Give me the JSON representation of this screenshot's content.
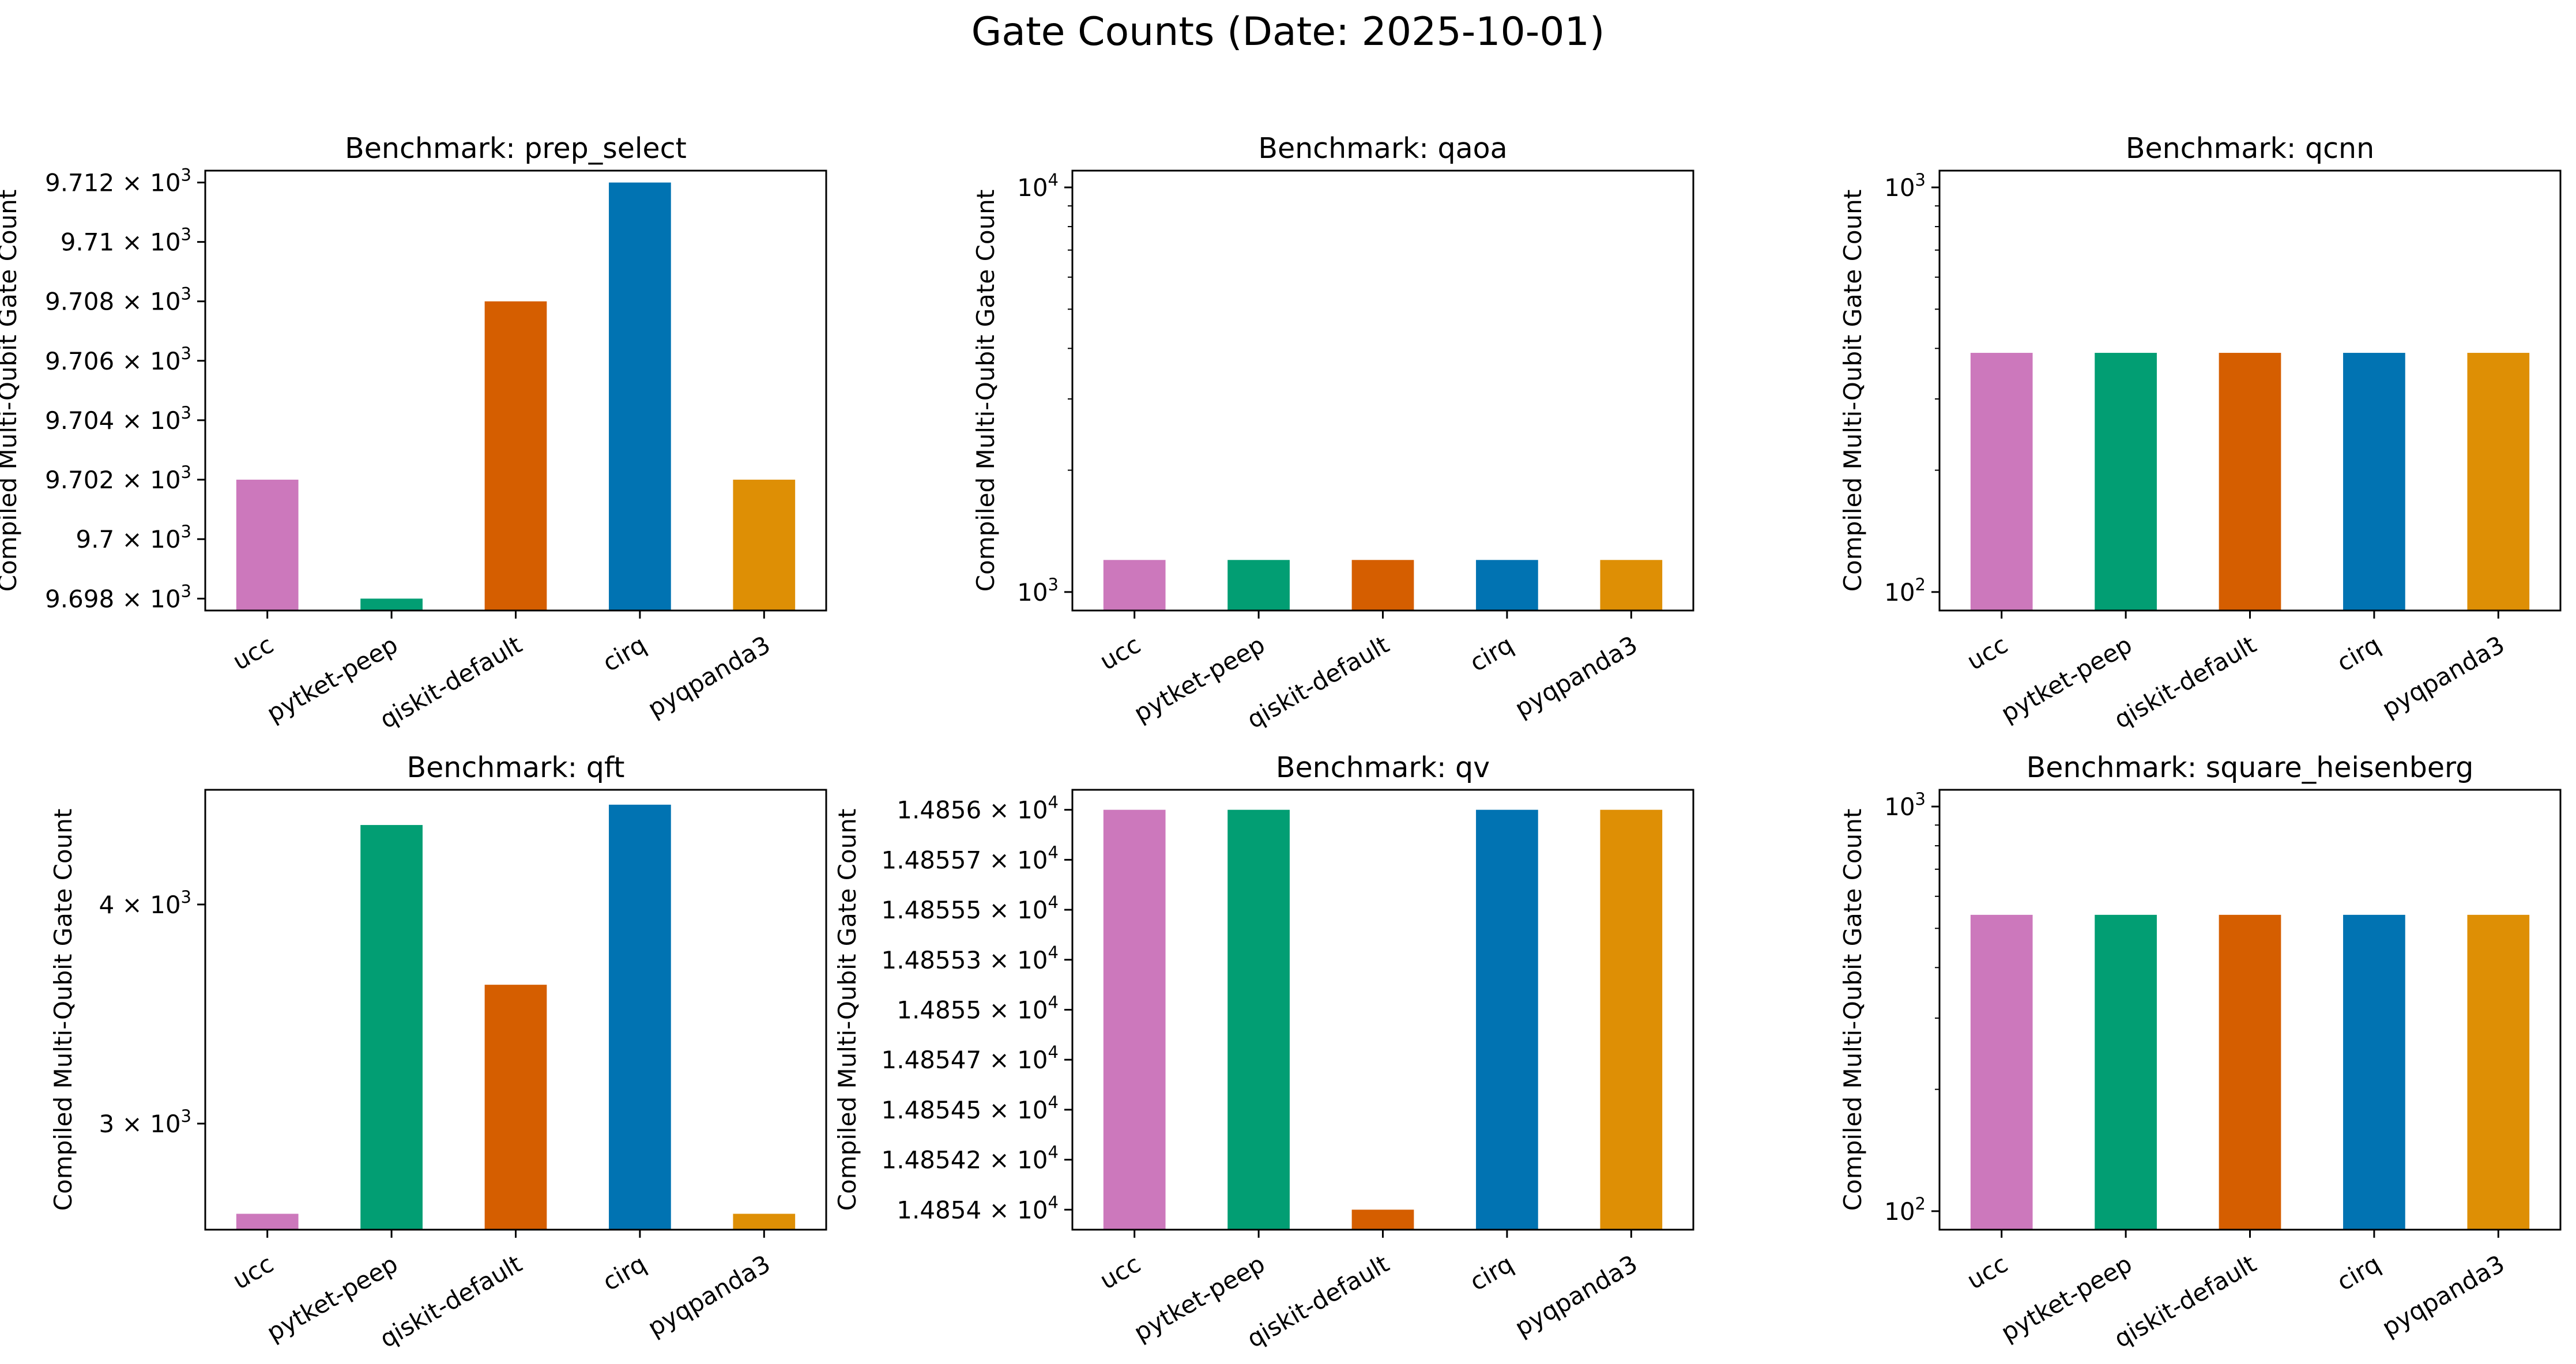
{
  "figure": {
    "title": "Gate Counts (Date: 2025-10-01)"
  },
  "chart_data": [
    {
      "type": "bar",
      "title": "Benchmark: prep_select",
      "xlabel": "",
      "ylabel": "Compiled Multi-Qubit Gate Count",
      "categories": [
        "ucc",
        "pytket-peep",
        "qiskit-default",
        "cirq",
        "pyqpanda3"
      ],
      "values": [
        9702,
        9698,
        9708,
        9712,
        9702
      ],
      "colors": [
        "#cc78bc",
        "#029e73",
        "#d55e00",
        "#0173b2",
        "#de8f05"
      ],
      "yscale": "log",
      "ylim": [
        9697.6,
        9712.4
      ],
      "yticks": [
        {
          "value": 9698,
          "mantissa": "9.698",
          "base": "10",
          "exp": "3"
        },
        {
          "value": 9700,
          "mantissa": "9.7",
          "base": "10",
          "exp": "3"
        },
        {
          "value": 9702,
          "mantissa": "9.702",
          "base": "10",
          "exp": "3"
        },
        {
          "value": 9704,
          "mantissa": "9.704",
          "base": "10",
          "exp": "3"
        },
        {
          "value": 9706,
          "mantissa": "9.706",
          "base": "10",
          "exp": "3"
        },
        {
          "value": 9708,
          "mantissa": "9.708",
          "base": "10",
          "exp": "3"
        },
        {
          "value": 9710,
          "mantissa": "9.71",
          "base": "10",
          "exp": "3"
        },
        {
          "value": 9712,
          "mantissa": "9.712",
          "base": "10",
          "exp": "3"
        }
      ],
      "minor_yticks": []
    },
    {
      "type": "bar",
      "title": "Benchmark: qaoa",
      "xlabel": "",
      "ylabel": "Compiled Multi-Qubit Gate Count",
      "categories": [
        "ucc",
        "pytket-peep",
        "qiskit-default",
        "cirq",
        "pyqpanda3"
      ],
      "values": [
        1200,
        1200,
        1200,
        1200,
        1200
      ],
      "colors": [
        "#cc78bc",
        "#029e73",
        "#d55e00",
        "#0173b2",
        "#de8f05"
      ],
      "yscale": "log",
      "ylim": [
        900,
        11000
      ],
      "yticks": [
        {
          "value": 1000,
          "mantissa": "",
          "base": "10",
          "exp": "3"
        },
        {
          "value": 10000,
          "mantissa": "",
          "base": "10",
          "exp": "4"
        }
      ],
      "minor_yticks": [
        2000,
        3000,
        4000,
        5000,
        6000,
        7000,
        8000,
        9000
      ]
    },
    {
      "type": "bar",
      "title": "Benchmark: qcnn",
      "xlabel": "",
      "ylabel": "Compiled Multi-Qubit Gate Count",
      "categories": [
        "ucc",
        "pytket-peep",
        "qiskit-default",
        "cirq",
        "pyqpanda3"
      ],
      "values": [
        390,
        390,
        390,
        390,
        390
      ],
      "colors": [
        "#cc78bc",
        "#029e73",
        "#d55e00",
        "#0173b2",
        "#de8f05"
      ],
      "yscale": "log",
      "ylim": [
        90,
        1100
      ],
      "yticks": [
        {
          "value": 100,
          "mantissa": "",
          "base": "10",
          "exp": "2"
        },
        {
          "value": 1000,
          "mantissa": "",
          "base": "10",
          "exp": "3"
        }
      ],
      "minor_yticks": [
        200,
        300,
        400,
        500,
        600,
        700,
        800,
        900
      ]
    },
    {
      "type": "bar",
      "title": "Benchmark: qft",
      "xlabel": "",
      "ylabel": "Compiled Multi-Qubit Gate Count",
      "categories": [
        "ucc",
        "pytket-peep",
        "qiskit-default",
        "cirq",
        "pyqpanda3"
      ],
      "values": [
        2665,
        4440,
        3600,
        4560,
        2665
      ],
      "colors": [
        "#cc78bc",
        "#029e73",
        "#d55e00",
        "#0173b2",
        "#de8f05"
      ],
      "yscale": "log",
      "ylim": [
        2610,
        4650
      ],
      "yticks": [
        {
          "value": 3000,
          "mantissa": "3",
          "base": "10",
          "exp": "3"
        },
        {
          "value": 4000,
          "mantissa": "4",
          "base": "10",
          "exp": "3"
        }
      ],
      "minor_yticks": []
    },
    {
      "type": "bar",
      "title": "Benchmark: qv",
      "xlabel": "",
      "ylabel": "Compiled Multi-Qubit Gate Count",
      "categories": [
        "ucc",
        "pytket-peep",
        "qiskit-default",
        "cirq",
        "pyqpanda3"
      ],
      "values": [
        14856,
        14856,
        14854,
        14856,
        14856
      ],
      "colors": [
        "#cc78bc",
        "#029e73",
        "#d55e00",
        "#0173b2",
        "#de8f05"
      ],
      "yscale": "log",
      "ylim": [
        14853.9,
        14856.1
      ],
      "yticks": [
        {
          "value": 14854,
          "mantissa": "1.4854",
          "base": "10",
          "exp": "4"
        },
        {
          "value": 14854.25,
          "mantissa": "1.48542",
          "base": "10",
          "exp": "4"
        },
        {
          "value": 14854.5,
          "mantissa": "1.48545",
          "base": "10",
          "exp": "4"
        },
        {
          "value": 14854.75,
          "mantissa": "1.48547",
          "base": "10",
          "exp": "4"
        },
        {
          "value": 14855,
          "mantissa": "1.4855",
          "base": "10",
          "exp": "4"
        },
        {
          "value": 14855.25,
          "mantissa": "1.48553",
          "base": "10",
          "exp": "4"
        },
        {
          "value": 14855.5,
          "mantissa": "1.48555",
          "base": "10",
          "exp": "4"
        },
        {
          "value": 14855.75,
          "mantissa": "1.48557",
          "base": "10",
          "exp": "4"
        },
        {
          "value": 14856,
          "mantissa": "1.4856",
          "base": "10",
          "exp": "4"
        }
      ],
      "minor_yticks": []
    },
    {
      "type": "bar",
      "title": "Benchmark: square_heisenberg",
      "xlabel": "",
      "ylabel": "Compiled Multi-Qubit Gate Count",
      "categories": [
        "ucc",
        "pytket-peep",
        "qiskit-default",
        "cirq",
        "pyqpanda3"
      ],
      "values": [
        540,
        540,
        540,
        540,
        540
      ],
      "colors": [
        "#cc78bc",
        "#029e73",
        "#d55e00",
        "#0173b2",
        "#de8f05"
      ],
      "yscale": "log",
      "ylim": [
        90,
        1100
      ],
      "yticks": [
        {
          "value": 100,
          "mantissa": "",
          "base": "10",
          "exp": "2"
        },
        {
          "value": 1000,
          "mantissa": "",
          "base": "10",
          "exp": "3"
        }
      ],
      "minor_yticks": [
        200,
        300,
        400,
        500,
        600,
        700,
        800,
        900
      ]
    }
  ]
}
